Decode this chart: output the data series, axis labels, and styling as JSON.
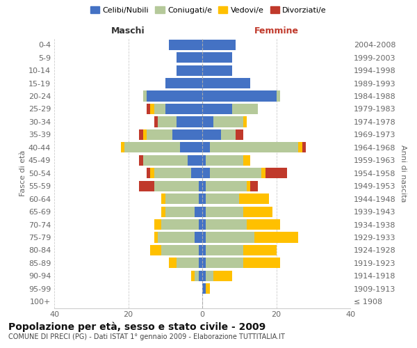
{
  "age_groups": [
    "100+",
    "95-99",
    "90-94",
    "85-89",
    "80-84",
    "75-79",
    "70-74",
    "65-69",
    "60-64",
    "55-59",
    "50-54",
    "45-49",
    "40-44",
    "35-39",
    "30-34",
    "25-29",
    "20-24",
    "15-19",
    "10-14",
    "5-9",
    "0-4"
  ],
  "birth_years": [
    "≤ 1908",
    "1909-1913",
    "1914-1918",
    "1919-1923",
    "1924-1928",
    "1929-1933",
    "1934-1938",
    "1939-1943",
    "1944-1948",
    "1949-1953",
    "1954-1958",
    "1959-1963",
    "1964-1968",
    "1969-1973",
    "1974-1978",
    "1979-1983",
    "1984-1988",
    "1989-1993",
    "1994-1998",
    "1999-2003",
    "2004-2008"
  ],
  "colors": {
    "celibi": "#4472c4",
    "coniugati": "#b5c99a",
    "vedovi": "#ffc000",
    "divorziati": "#c0392b"
  },
  "maschi": {
    "celibi": [
      0,
      0,
      1,
      1,
      1,
      2,
      1,
      2,
      1,
      1,
      3,
      4,
      6,
      8,
      7,
      10,
      15,
      10,
      7,
      7,
      9
    ],
    "coniugati": [
      0,
      0,
      1,
      6,
      10,
      10,
      10,
      8,
      9,
      12,
      10,
      12,
      15,
      7,
      5,
      3,
      1,
      0,
      0,
      0,
      0
    ],
    "vedovi": [
      0,
      0,
      1,
      2,
      3,
      1,
      2,
      1,
      1,
      0,
      1,
      0,
      1,
      1,
      0,
      1,
      0,
      0,
      0,
      0,
      0
    ],
    "divorziati": [
      0,
      0,
      0,
      0,
      0,
      0,
      0,
      0,
      0,
      4,
      1,
      1,
      0,
      1,
      1,
      1,
      0,
      0,
      0,
      0,
      0
    ]
  },
  "femmine": {
    "celibi": [
      0,
      1,
      1,
      1,
      1,
      1,
      1,
      1,
      1,
      1,
      2,
      1,
      2,
      5,
      3,
      8,
      20,
      13,
      8,
      8,
      9
    ],
    "coniugati": [
      0,
      0,
      2,
      10,
      10,
      13,
      11,
      10,
      9,
      11,
      14,
      10,
      24,
      4,
      8,
      7,
      1,
      0,
      0,
      0,
      0
    ],
    "vedovi": [
      0,
      1,
      5,
      10,
      9,
      12,
      9,
      8,
      8,
      1,
      1,
      2,
      1,
      0,
      1,
      0,
      0,
      0,
      0,
      0,
      0
    ],
    "divorziati": [
      0,
      0,
      0,
      0,
      0,
      0,
      0,
      0,
      0,
      2,
      6,
      0,
      1,
      2,
      0,
      0,
      0,
      0,
      0,
      0,
      0
    ]
  },
  "xlim": 40,
  "title": "Popolazione per età, sesso e stato civile - 2009",
  "subtitle": "COMUNE DI PRECI (PG) - Dati ISTAT 1° gennaio 2009 - Elaborazione TUTTITALIA.IT",
  "ylabel_left": "Fasce di età",
  "ylabel_right": "Anni di nascita",
  "xlabel_left": "Maschi",
  "xlabel_right": "Femmine",
  "legend_labels": [
    "Celibi/Nubili",
    "Coniugati/e",
    "Vedovi/e",
    "Divorziati/e"
  ],
  "background_color": "#ffffff",
  "maschi_label_color": "#333333",
  "femmine_label_color": "#c0392b",
  "grid_color": "#cccccc",
  "tick_color": "#666666",
  "spine_color": "#cccccc",
  "title_fontsize": 10,
  "subtitle_fontsize": 7,
  "legend_fontsize": 8,
  "axis_fontsize": 8,
  "label_fontsize": 8
}
